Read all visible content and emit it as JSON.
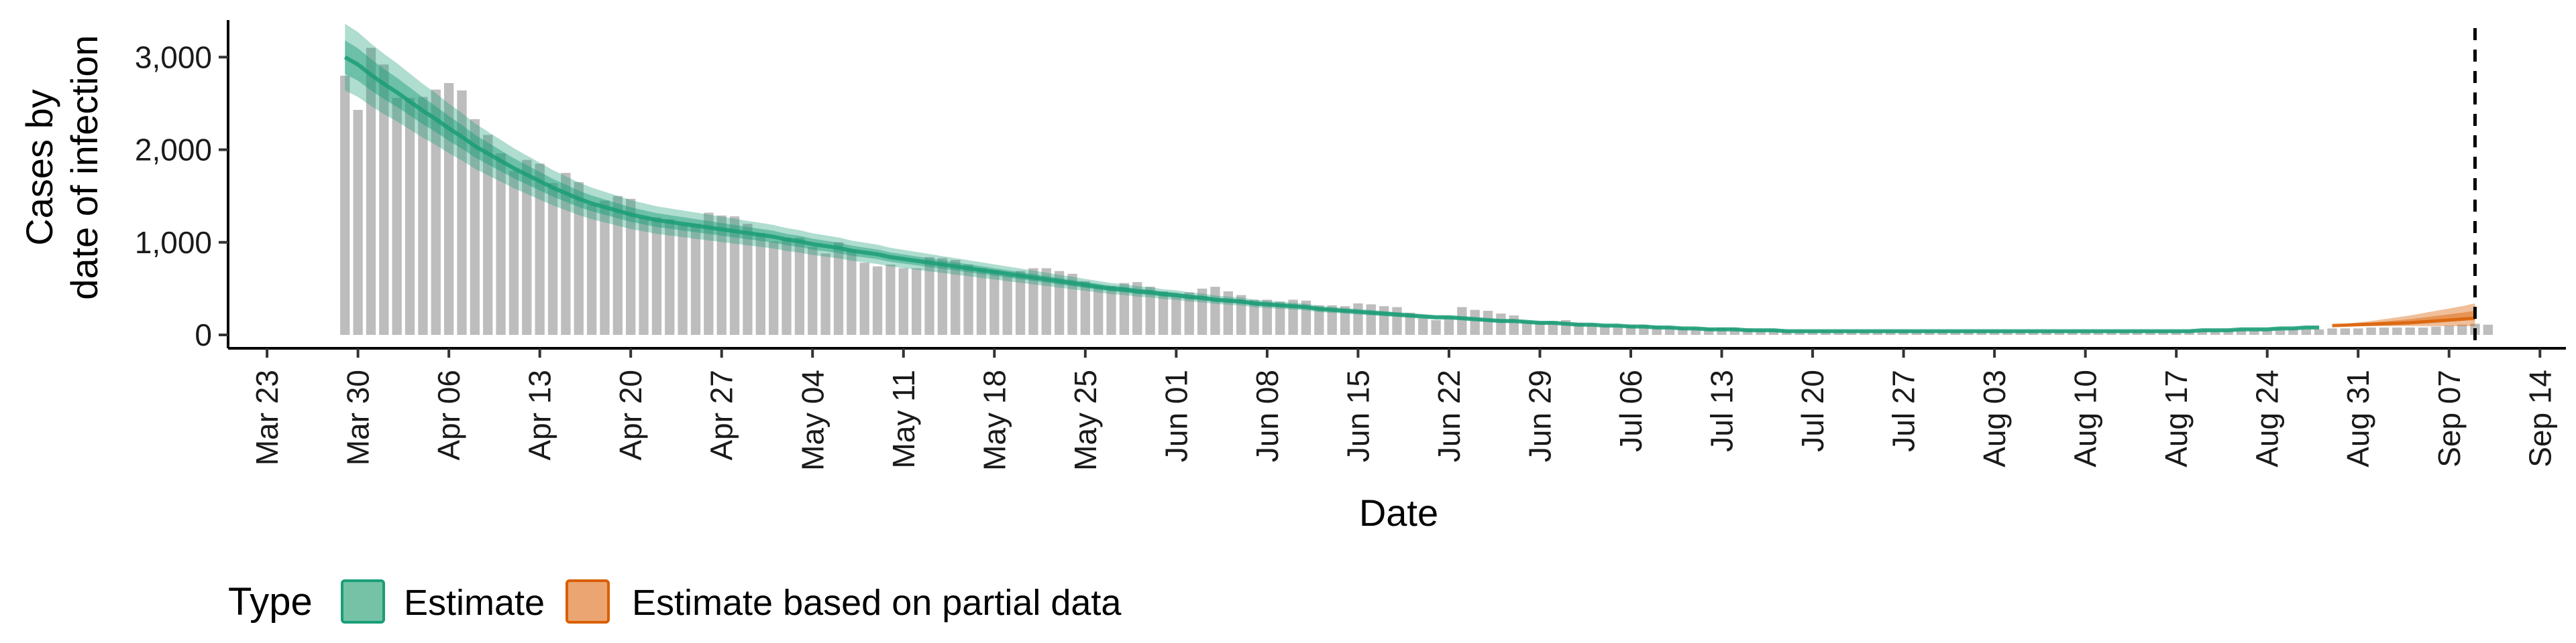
{
  "chart_data": {
    "type": "bar",
    "title": "",
    "xlabel": "Date",
    "ylabel_lines": [
      "Cases by",
      "date of infection"
    ],
    "x_range": [
      "2020-03-20",
      "2020-09-16"
    ],
    "ylim": [
      0,
      3400
    ],
    "y_ticks": [
      0,
      1000,
      2000,
      3000
    ],
    "y_tick_labels": [
      "0",
      "1,000",
      "2,000",
      "3,000"
    ],
    "x_ticks": [
      "2020-03-23",
      "2020-03-30",
      "2020-04-06",
      "2020-04-13",
      "2020-04-20",
      "2020-04-27",
      "2020-05-04",
      "2020-05-11",
      "2020-05-18",
      "2020-05-25",
      "2020-06-01",
      "2020-06-08",
      "2020-06-15",
      "2020-06-22",
      "2020-06-29",
      "2020-07-06",
      "2020-07-13",
      "2020-07-20",
      "2020-07-27",
      "2020-08-03",
      "2020-08-10",
      "2020-08-17",
      "2020-08-24",
      "2020-08-31",
      "2020-09-07",
      "2020-09-14"
    ],
    "x_tick_labels": [
      "Mar 23",
      "Mar 30",
      "Apr 06",
      "Apr 13",
      "Apr 20",
      "Apr 27",
      "May 04",
      "May 11",
      "May 18",
      "May 25",
      "Jun 01",
      "Jun 08",
      "Jun 15",
      "Jun 22",
      "Jun 29",
      "Jul 06",
      "Jul 13",
      "Jul 20",
      "Jul 27",
      "Aug 03",
      "Aug 10",
      "Aug 17",
      "Aug 24",
      "Aug 31",
      "Sep 07",
      "Sep 14"
    ],
    "grid": false,
    "reference_line_date": "2020-09-09",
    "legend_position": "bottom-left",
    "observed_cases": {
      "start_date": "2020-03-29",
      "color": "#bdbdbd",
      "values": [
        2800,
        2430,
        3100,
        2920,
        2560,
        2560,
        2570,
        2650,
        2720,
        2640,
        2330,
        2160,
        1960,
        1770,
        1890,
        1850,
        1640,
        1750,
        1650,
        1410,
        1450,
        1500,
        1470,
        1270,
        1270,
        1250,
        1190,
        1200,
        1320,
        1290,
        1280,
        1200,
        1100,
        1010,
        1050,
        1050,
        950,
        880,
        1000,
        920,
        780,
        740,
        760,
        720,
        720,
        840,
        830,
        810,
        760,
        720,
        700,
        640,
        690,
        720,
        720,
        690,
        660,
        580,
        520,
        530,
        560,
        570,
        520,
        470,
        420,
        460,
        500,
        520,
        470,
        430,
        380,
        380,
        360,
        380,
        370,
        320,
        320,
        310,
        340,
        330,
        310,
        300,
        240,
        180,
        160,
        190,
        300,
        270,
        260,
        230,
        210,
        150,
        140,
        150,
        160,
        130,
        120,
        110,
        110,
        110,
        110,
        100,
        90,
        80,
        70,
        70,
        80,
        80,
        70,
        60,
        60,
        50,
        50,
        50,
        50,
        40,
        40,
        40,
        40,
        40,
        40,
        40,
        40,
        40,
        40,
        40,
        40,
        40,
        40,
        40,
        40,
        40,
        40,
        40,
        40,
        40,
        40,
        40,
        40,
        40,
        40,
        40,
        40,
        40,
        40,
        40,
        50,
        50,
        50,
        60,
        60,
        60,
        60,
        70,
        70,
        70,
        80,
        80,
        80,
        80,
        80,
        90,
        100,
        110,
        120,
        110
      ]
    },
    "series": [
      {
        "name": "Estimate",
        "color": "#1b9e77",
        "start_date": "2020-03-29",
        "median": [
          3000,
          2920,
          2810,
          2710,
          2620,
          2520,
          2420,
          2330,
          2230,
          2140,
          2040,
          1960,
          1880,
          1800,
          1730,
          1660,
          1590,
          1530,
          1470,
          1420,
          1380,
          1340,
          1300,
          1270,
          1240,
          1220,
          1200,
          1180,
          1160,
          1140,
          1120,
          1100,
          1080,
          1060,
          1030,
          1010,
          980,
          960,
          940,
          910,
          890,
          870,
          840,
          820,
          800,
          780,
          760,
          740,
          720,
          700,
          680,
          660,
          640,
          620,
          600,
          580,
          560,
          540,
          520,
          500,
          490,
          470,
          460,
          440,
          430,
          410,
          400,
          380,
          370,
          360,
          340,
          330,
          320,
          310,
          300,
          280,
          270,
          260,
          250,
          240,
          230,
          220,
          210,
          200,
          190,
          190,
          180,
          170,
          160,
          150,
          150,
          140,
          130,
          130,
          120,
          110,
          110,
          100,
          100,
          90,
          90,
          80,
          80,
          70,
          70,
          60,
          60,
          60,
          50,
          50,
          50,
          40,
          40,
          40,
          40,
          40,
          40,
          40,
          40,
          40,
          40,
          40,
          40,
          40,
          40,
          40,
          40,
          40,
          40,
          40,
          40,
          40,
          40,
          40,
          40,
          40,
          40,
          40,
          40,
          40,
          40,
          40,
          40,
          50,
          50,
          50,
          60,
          60,
          60,
          70,
          70,
          80,
          80
        ],
        "ci50_width_frac": 0.06,
        "ci90_width_frac": 0.12
      },
      {
        "name": "Estimate based on partial data",
        "color": "#d95f02",
        "start_date": "2020-08-29",
        "median": [
          100,
          105,
          110,
          115,
          120,
          125,
          130,
          140,
          150,
          160,
          170,
          180
        ],
        "upper90": [
          110,
          120,
          135,
          150,
          170,
          190,
          210,
          235,
          260,
          285,
          310,
          340
        ],
        "lower90": [
          95,
          95,
          95,
          95,
          95,
          95,
          95,
          95,
          95,
          95,
          95,
          95
        ]
      }
    ]
  },
  "legend": {
    "title": "Type",
    "items": [
      {
        "label": "Estimate",
        "fill": "#75c2a6",
        "stroke": "#1b9e77"
      },
      {
        "label": "Estimate based on partial data",
        "fill": "#eba572",
        "stroke": "#d95f02"
      }
    ]
  }
}
